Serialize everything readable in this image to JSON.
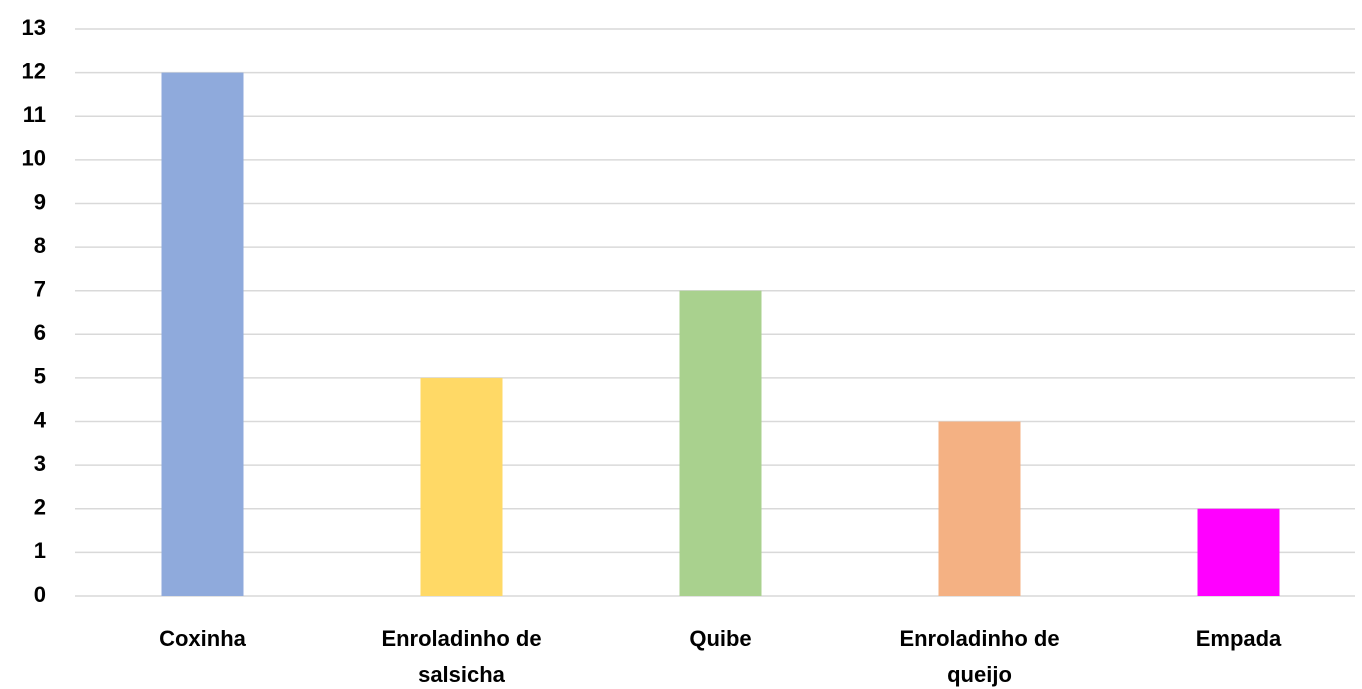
{
  "chart_data": {
    "type": "bar",
    "categories": [
      [
        "Coxinha"
      ],
      [
        "Enroladinho de",
        "salsicha"
      ],
      [
        "Quibe"
      ],
      [
        "Enroladinho de",
        "queijo"
      ],
      [
        "Empada"
      ]
    ],
    "values": [
      12,
      5,
      7,
      4,
      2
    ],
    "colors": [
      "#8faadc",
      "#ffd966",
      "#a9d18e",
      "#f4b183",
      "#ff00ff"
    ],
    "ylim": [
      0,
      13
    ],
    "yticks": [
      0,
      1,
      2,
      3,
      4,
      5,
      6,
      7,
      8,
      9,
      10,
      11,
      12,
      13
    ],
    "grid": true
  }
}
